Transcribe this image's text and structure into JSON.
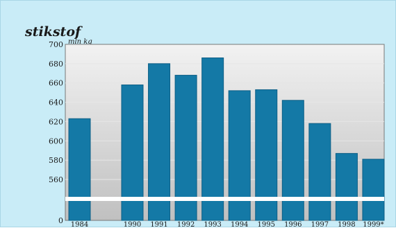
{
  "chart_data": {
    "type": "bar",
    "title": "stikstof",
    "unit_label": "mln kg",
    "categories": [
      "1984",
      "1990",
      "1991",
      "1992",
      "1993",
      "1994",
      "1995",
      "1996",
      "1997",
      "1998",
      "1999*"
    ],
    "values": [
      623,
      658,
      680,
      668,
      686,
      652,
      653,
      642,
      618,
      587,
      581
    ],
    "y_ticks": [
      "0",
      "560",
      "580",
      "600",
      "620",
      "640",
      "660",
      "680",
      "700"
    ],
    "y_axis_break": true,
    "ylim": [
      540,
      700
    ],
    "grid": true,
    "legend": "none",
    "bar_color": "#1479a6",
    "plot_background_top": "#f2f2f2",
    "plot_background_bottom": "#c0c0c0",
    "background_color": "#c9ecf7"
  }
}
